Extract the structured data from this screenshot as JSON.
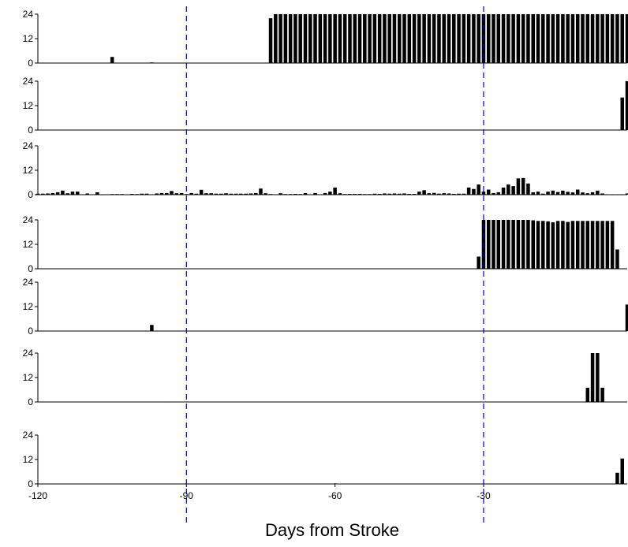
{
  "chart_data": {
    "type": "bar",
    "xlabel": "Days from Stroke",
    "xlim": [
      -120,
      -1
    ],
    "x_ticks": [
      -120,
      -90,
      -60,
      -30
    ],
    "x_tick_labels": [
      "-120",
      "-90",
      "-60",
      "-30"
    ],
    "ylim": [
      0,
      24
    ],
    "y_ticks": [
      0,
      12,
      24
    ],
    "y_tick_labels": [
      "0",
      "12",
      "24"
    ],
    "reference_lines": [
      -90,
      -30
    ],
    "reference_line_color": "#0000cc",
    "bar_color": "#000000",
    "panels": [
      {
        "points": [
          [
            -105,
            3
          ],
          [
            -97,
            0.3
          ],
          [
            -73,
            22
          ],
          [
            -72,
            24
          ],
          [
            -71,
            24
          ],
          [
            -70,
            24
          ],
          [
            -69,
            24
          ],
          [
            -68,
            24
          ],
          [
            -67,
            24
          ],
          [
            -66,
            24
          ],
          [
            -65,
            24
          ],
          [
            -64,
            24
          ],
          [
            -63,
            24
          ],
          [
            -62,
            24
          ],
          [
            -61,
            24
          ],
          [
            -60,
            24
          ],
          [
            -59,
            24
          ],
          [
            -58,
            24
          ],
          [
            -57,
            24
          ],
          [
            -56,
            24
          ],
          [
            -55,
            24
          ],
          [
            -54,
            24
          ],
          [
            -53,
            24
          ],
          [
            -52,
            24
          ],
          [
            -51,
            24
          ],
          [
            -50,
            24
          ],
          [
            -49,
            24
          ],
          [
            -48,
            24
          ],
          [
            -47,
            24
          ],
          [
            -46,
            24
          ],
          [
            -45,
            24
          ],
          [
            -44,
            24
          ],
          [
            -43,
            24
          ],
          [
            -42,
            24
          ],
          [
            -41,
            24
          ],
          [
            -40,
            24
          ],
          [
            -39,
            24
          ],
          [
            -38,
            24
          ],
          [
            -37,
            24
          ],
          [
            -36,
            24
          ],
          [
            -35,
            24
          ],
          [
            -34,
            24
          ],
          [
            -33,
            24
          ],
          [
            -32,
            24
          ],
          [
            -31,
            24
          ],
          [
            -30,
            24
          ],
          [
            -29,
            24
          ],
          [
            -28,
            24
          ],
          [
            -27,
            24
          ],
          [
            -26,
            24
          ],
          [
            -25,
            24
          ],
          [
            -24,
            24
          ],
          [
            -23,
            24
          ],
          [
            -22,
            24
          ],
          [
            -21,
            24
          ],
          [
            -20,
            24
          ],
          [
            -19,
            24
          ],
          [
            -18,
            24
          ],
          [
            -17,
            24
          ],
          [
            -16,
            24
          ],
          [
            -15,
            24
          ],
          [
            -14,
            24
          ],
          [
            -13,
            24
          ],
          [
            -12,
            24
          ],
          [
            -11,
            24
          ],
          [
            -10,
            24
          ],
          [
            -9,
            24
          ],
          [
            -8,
            24
          ],
          [
            -7,
            24
          ],
          [
            -6,
            24
          ],
          [
            -5,
            24
          ],
          [
            -4,
            24
          ],
          [
            -3,
            24
          ],
          [
            -2,
            24
          ],
          [
            -1,
            24
          ]
        ]
      },
      {
        "points": [
          [
            -2,
            16
          ],
          [
            -1,
            24
          ]
        ]
      },
      {
        "points": [
          [
            -120,
            0.5
          ],
          [
            -119,
            0.5
          ],
          [
            -118,
            0.6
          ],
          [
            -117,
            0.8
          ],
          [
            -116,
            1.2
          ],
          [
            -115,
            2
          ],
          [
            -114,
            0.7
          ],
          [
            -113,
            1.5
          ],
          [
            -112,
            1.5
          ],
          [
            -111,
            0.2
          ],
          [
            -110,
            0.6
          ],
          [
            -109,
            0.2
          ],
          [
            -108,
            1.2
          ],
          [
            -107,
            0.1
          ],
          [
            -106,
            0.2
          ],
          [
            -105,
            0.3
          ],
          [
            -104,
            0.3
          ],
          [
            -103,
            0.3
          ],
          [
            -102,
            0.1
          ],
          [
            -101,
            0.4
          ],
          [
            -100,
            0.3
          ],
          [
            -99,
            0.5
          ],
          [
            -98,
            0.5
          ],
          [
            -97,
            0.2
          ],
          [
            -96,
            0.6
          ],
          [
            -95,
            0.8
          ],
          [
            -94,
            0.8
          ],
          [
            -93,
            1.8
          ],
          [
            -92,
            0.7
          ],
          [
            -91,
            0.8
          ],
          [
            -90,
            0.3
          ],
          [
            -89,
            0.8
          ],
          [
            -88,
            0.5
          ],
          [
            -87,
            2.4
          ],
          [
            -86,
            0.7
          ],
          [
            -85,
            0.7
          ],
          [
            -84,
            0.5
          ],
          [
            -83,
            0.5
          ],
          [
            -82,
            0.7
          ],
          [
            -81,
            0.5
          ],
          [
            -80,
            0.5
          ],
          [
            -79,
            0.5
          ],
          [
            -78,
            0.5
          ],
          [
            -77,
            0.6
          ],
          [
            -76,
            0.8
          ],
          [
            -75,
            3
          ],
          [
            -74,
            0.7
          ],
          [
            -73,
            0.3
          ],
          [
            -72,
            0.2
          ],
          [
            -71,
            0.7
          ],
          [
            -70,
            0.3
          ],
          [
            -69,
            0.3
          ],
          [
            -68,
            0.4
          ],
          [
            -67,
            0.3
          ],
          [
            -66,
            0.8
          ],
          [
            -65,
            0.2
          ],
          [
            -64,
            0.8
          ],
          [
            -63,
            0.2
          ],
          [
            -62,
            0.8
          ],
          [
            -61,
            1.5
          ],
          [
            -60,
            3.5
          ],
          [
            -59,
            0.7
          ],
          [
            -58,
            0.3
          ],
          [
            -57,
            0.4
          ],
          [
            -56,
            0.4
          ],
          [
            -55,
            0.4
          ],
          [
            -54,
            0.3
          ],
          [
            -53,
            0.3
          ],
          [
            -52,
            0.5
          ],
          [
            -51,
            0.4
          ],
          [
            -50,
            0.6
          ],
          [
            -49,
            0.5
          ],
          [
            -48,
            0.6
          ],
          [
            -47,
            0.5
          ],
          [
            -46,
            0.6
          ],
          [
            -45,
            0.4
          ],
          [
            -44,
            0.4
          ],
          [
            -43,
            1.5
          ],
          [
            -42,
            2.2
          ],
          [
            -41,
            0.7
          ],
          [
            -40,
            0.9
          ],
          [
            -39,
            0.5
          ],
          [
            -38,
            0.7
          ],
          [
            -37,
            0.6
          ],
          [
            -36,
            0.4
          ],
          [
            -35,
            0.5
          ],
          [
            -34,
            0.5
          ],
          [
            -33,
            3.5
          ],
          [
            -32,
            2.8
          ],
          [
            -31,
            5
          ],
          [
            -30,
            1.5
          ],
          [
            -29,
            2.5
          ],
          [
            -28,
            0.8
          ],
          [
            -27,
            1.2
          ],
          [
            -26,
            3.5
          ],
          [
            -25,
            5
          ],
          [
            -24,
            4.2
          ],
          [
            -23,
            8
          ],
          [
            -22,
            8.2
          ],
          [
            -21,
            5.5
          ],
          [
            -20,
            1.2
          ],
          [
            -19,
            1.5
          ],
          [
            -18,
            0.5
          ],
          [
            -17,
            1.5
          ],
          [
            -16,
            2
          ],
          [
            -15,
            1.3
          ],
          [
            -14,
            2
          ],
          [
            -13,
            1.4
          ],
          [
            -12,
            1.1
          ],
          [
            -11,
            2.5
          ],
          [
            -10,
            1.1
          ],
          [
            -9,
            0.7
          ],
          [
            -8,
            1.2
          ],
          [
            -7,
            2
          ],
          [
            -6,
            0.6
          ],
          [
            -5,
            0.2
          ],
          [
            -4,
            0.1
          ],
          [
            -3,
            0.1
          ],
          [
            -2,
            0.1
          ],
          [
            -1,
            0.6
          ]
        ]
      },
      {
        "points": [
          [
            -31,
            6
          ],
          [
            -30,
            24
          ],
          [
            -29,
            24
          ],
          [
            -28,
            24
          ],
          [
            -27,
            24
          ],
          [
            -26,
            24
          ],
          [
            -25,
            24
          ],
          [
            -24,
            24
          ],
          [
            -23,
            24
          ],
          [
            -22,
            24
          ],
          [
            -21,
            24
          ],
          [
            -20,
            23.8
          ],
          [
            -19,
            23.5
          ],
          [
            -18,
            23.5
          ],
          [
            -17,
            23.3
          ],
          [
            -16,
            22.8
          ],
          [
            -15,
            23.5
          ],
          [
            -14,
            23.5
          ],
          [
            -13,
            23
          ],
          [
            -12,
            23.5
          ],
          [
            -11,
            23.5
          ],
          [
            -10,
            23.5
          ],
          [
            -9,
            23.5
          ],
          [
            -8,
            23.5
          ],
          [
            -7,
            23.5
          ],
          [
            -6,
            23.5
          ],
          [
            -5,
            23.5
          ],
          [
            -4,
            23.5
          ],
          [
            -3,
            9.5
          ]
        ]
      },
      {
        "points": [
          [
            -97,
            3
          ],
          [
            -1,
            13
          ]
        ]
      },
      {
        "points": [
          [
            -94,
            0.2
          ],
          [
            -9,
            7
          ],
          [
            -8,
            24
          ],
          [
            -7,
            24
          ],
          [
            -6,
            7
          ]
        ]
      },
      {
        "points": [
          [
            -3,
            5.5
          ],
          [
            -2,
            12.5
          ]
        ]
      }
    ]
  }
}
